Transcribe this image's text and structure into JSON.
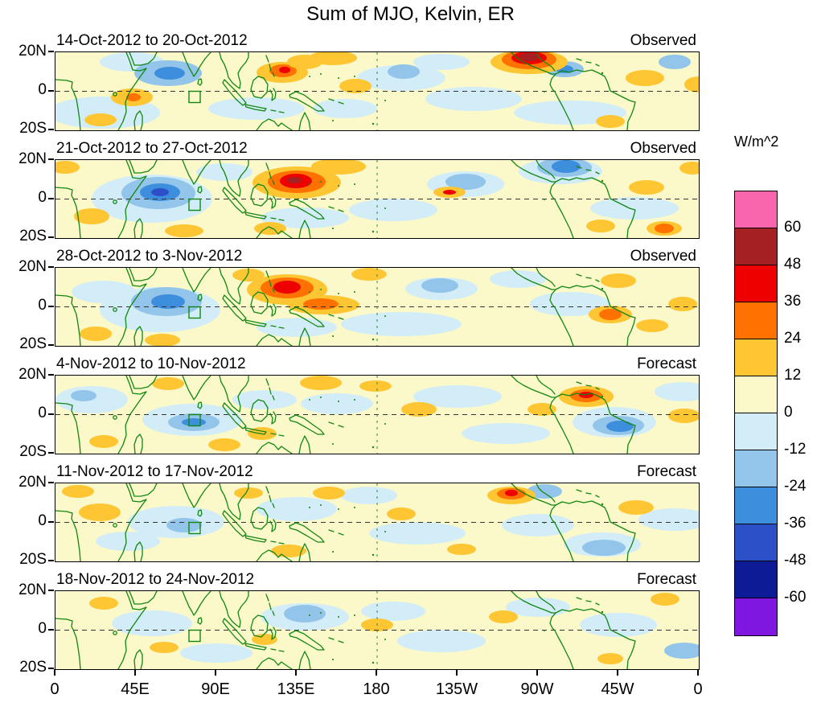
{
  "chart_data": {
    "type": "heatmap",
    "title": "Sum of MJO, Kelvin, ER",
    "subtitle": "",
    "x_axis": {
      "label": "",
      "ticks": [
        "0",
        "45E",
        "90E",
        "135E",
        "180",
        "135W",
        "90W",
        "45W",
        "0"
      ]
    },
    "y_axis": {
      "label": "",
      "ticks": [
        "20N",
        "0",
        "20S"
      ]
    },
    "colorbar": {
      "units": "W/m^2",
      "tick_labels": [
        "60",
        "48",
        "36",
        "24",
        "12",
        "0",
        "-12",
        "-24",
        "-36",
        "-48",
        "-60"
      ],
      "colors_top_to_bottom": [
        "#F966AE",
        "#A52022",
        "#EE0000",
        "#FF7100",
        "#FFC633",
        "#FBF8C9",
        "#D2EDF8",
        "#92C5E9",
        "#3E8EDE",
        "#2C50C8",
        "#0D1C96",
        "#7F17E0"
      ]
    },
    "map": {
      "background": "#FBF8C9",
      "coast_color": "#128712",
      "equator_color": "#333333",
      "dateline_color": "#2E7D32"
    },
    "panels": [
      {
        "period": "14-Oct-2012 to 20-Oct-2012",
        "type": "Observed",
        "features": [
          [
            60,
            75,
            70,
            20,
            "#D2EDF8"
          ],
          [
            250,
            70,
            60,
            14,
            "#D2EDF8"
          ],
          [
            430,
            32,
            55,
            16,
            "#D2EDF8"
          ],
          [
            520,
            58,
            60,
            15,
            "#D2EDF8"
          ],
          [
            640,
            75,
            70,
            15,
            "#D2EDF8"
          ],
          [
            95,
            12,
            40,
            12,
            "#D2EDF8"
          ],
          [
            360,
            70,
            40,
            12,
            "#D2EDF8"
          ],
          [
            480,
            12,
            35,
            10,
            "#D2EDF8"
          ],
          [
            140,
            26,
            42,
            16,
            "#92C5E9"
          ],
          [
            142,
            26,
            19,
            8,
            "#3E8EDE"
          ],
          [
            433,
            24,
            20,
            9,
            "#92C5E9"
          ],
          [
            633,
            21,
            24,
            10,
            "#92C5E9"
          ],
          [
            633,
            21,
            11,
            5,
            "#3E8EDE"
          ],
          [
            770,
            12,
            20,
            9,
            "#92C5E9"
          ],
          [
            95,
            56,
            26,
            11,
            "#FFC633"
          ],
          [
            97,
            56,
            9,
            5,
            "#FF7100"
          ],
          [
            56,
            84,
            20,
            8,
            "#FFC633"
          ],
          [
            282,
            25,
            32,
            13,
            "#FFC633"
          ],
          [
            283,
            23,
            17,
            8,
            "#FF7100"
          ],
          [
            285,
            22,
            7,
            4,
            "#EE0000"
          ],
          [
            310,
            12,
            22,
            9,
            "#FFC633"
          ],
          [
            345,
            7,
            30,
            9,
            "#FFC633"
          ],
          [
            373,
            42,
            20,
            9,
            "#FFC633"
          ],
          [
            589,
            12,
            48,
            15,
            "#FFC633"
          ],
          [
            589,
            9,
            34,
            12,
            "#FF7100"
          ],
          [
            589,
            7,
            22,
            8,
            "#EE0000"
          ],
          [
            589,
            6,
            12,
            5,
            "#A52022"
          ],
          [
            733,
            32,
            24,
            10,
            "#FFC633"
          ],
          [
            690,
            86,
            18,
            8,
            "#FFC633"
          ],
          [
            800,
            40,
            18,
            10,
            "#FFC633"
          ]
        ]
      },
      {
        "period": "21-Oct-2012 to 27-Oct-2012",
        "type": "Observed",
        "features": [
          [
            120,
            48,
            75,
            30,
            "#D2EDF8"
          ],
          [
            310,
            72,
            55,
            13,
            "#D2EDF8"
          ],
          [
            420,
            62,
            55,
            14,
            "#D2EDF8"
          ],
          [
            510,
            30,
            48,
            16,
            "#D2EDF8"
          ],
          [
            628,
            14,
            52,
            16,
            "#D2EDF8"
          ],
          [
            720,
            60,
            55,
            14,
            "#D2EDF8"
          ],
          [
            210,
            15,
            35,
            11,
            "#D2EDF8"
          ],
          [
            128,
            41,
            46,
            20,
            "#92C5E9"
          ],
          [
            130,
            40,
            25,
            11,
            "#3E8EDE"
          ],
          [
            130,
            40,
            11,
            5,
            "#2C50C8"
          ],
          [
            510,
            27,
            25,
            10,
            "#92C5E9"
          ],
          [
            633,
            9,
            34,
            12,
            "#92C5E9"
          ],
          [
            635,
            8,
            18,
            8,
            "#3E8EDE"
          ],
          [
            45,
            70,
            22,
            10,
            "#FFC633"
          ],
          [
            12,
            9,
            18,
            8,
            "#FFC633"
          ],
          [
            300,
            28,
            55,
            20,
            "#FFC633"
          ],
          [
            300,
            27,
            36,
            14,
            "#FF7100"
          ],
          [
            299,
            26,
            20,
            9,
            "#EE0000"
          ],
          [
            297,
            25,
            9,
            4,
            "#A52022"
          ],
          [
            352,
            8,
            34,
            10,
            "#FFC633"
          ],
          [
            267,
            85,
            20,
            8,
            "#FFC633"
          ],
          [
            490,
            40,
            20,
            7,
            "#FFC633"
          ],
          [
            490,
            40,
            8,
            3,
            "#EE0000"
          ],
          [
            735,
            34,
            22,
            9,
            "#FFC633"
          ],
          [
            678,
            82,
            18,
            8,
            "#FFC633"
          ],
          [
            757,
            85,
            22,
            9,
            "#FFC633"
          ],
          [
            757,
            85,
            12,
            6,
            "#FF7100"
          ],
          [
            792,
            10,
            16,
            8,
            "#FFC633"
          ],
          [
            160,
            88,
            24,
            8,
            "#FFC633"
          ]
        ]
      },
      {
        "period": "28-Oct-2012 to 3-Nov-2012",
        "type": "Observed",
        "features": [
          [
            130,
            52,
            75,
            28,
            "#D2EDF8"
          ],
          [
            300,
            74,
            50,
            12,
            "#D2EDF8"
          ],
          [
            430,
            70,
            75,
            15,
            "#D2EDF8"
          ],
          [
            480,
            26,
            45,
            14,
            "#D2EDF8"
          ],
          [
            575,
            14,
            35,
            11,
            "#D2EDF8"
          ],
          [
            640,
            45,
            50,
            15,
            "#D2EDF8"
          ],
          [
            60,
            30,
            40,
            14,
            "#D2EDF8"
          ],
          [
            138,
            42,
            44,
            18,
            "#92C5E9"
          ],
          [
            140,
            42,
            21,
            9,
            "#3E8EDE"
          ],
          [
            478,
            22,
            23,
            9,
            "#92C5E9"
          ],
          [
            50,
            82,
            20,
            9,
            "#FFC633"
          ],
          [
            133,
            90,
            22,
            8,
            "#FFC633"
          ],
          [
            288,
            27,
            50,
            19,
            "#FFC633"
          ],
          [
            288,
            25,
            33,
            13,
            "#FF7100"
          ],
          [
            288,
            24,
            17,
            8,
            "#EE0000"
          ],
          [
            333,
            46,
            45,
            12,
            "#FFC633"
          ],
          [
            330,
            45,
            22,
            7,
            "#FF7100"
          ],
          [
            240,
            9,
            20,
            8,
            "#FFC633"
          ],
          [
            700,
            16,
            22,
            9,
            "#FFC633"
          ],
          [
            690,
            58,
            27,
            11,
            "#FFC633"
          ],
          [
            690,
            58,
            14,
            7,
            "#FF7100"
          ],
          [
            742,
            72,
            20,
            8,
            "#FFC633"
          ],
          [
            390,
            8,
            22,
            8,
            "#FFC633"
          ],
          [
            780,
            45,
            18,
            9,
            "#FFC633"
          ]
        ]
      },
      {
        "period": "4-Nov-2012 to 10-Nov-2012",
        "type": "Forecast",
        "features": [
          [
            45,
            30,
            45,
            17,
            "#D2EDF8"
          ],
          [
            170,
            55,
            62,
            20,
            "#D2EDF8"
          ],
          [
            350,
            35,
            45,
            13,
            "#D2EDF8"
          ],
          [
            500,
            26,
            55,
            14,
            "#D2EDF8"
          ],
          [
            560,
            72,
            55,
            13,
            "#D2EDF8"
          ],
          [
            695,
            58,
            52,
            19,
            "#D2EDF8"
          ],
          [
            780,
            20,
            35,
            12,
            "#D2EDF8"
          ],
          [
            260,
            30,
            40,
            12,
            "#D2EDF8"
          ],
          [
            35,
            25,
            16,
            7,
            "#92C5E9"
          ],
          [
            172,
            58,
            32,
            11,
            "#92C5E9"
          ],
          [
            172,
            58,
            15,
            5,
            "#3E8EDE"
          ],
          [
            700,
            62,
            32,
            12,
            "#92C5E9"
          ],
          [
            702,
            63,
            17,
            7,
            "#3E8EDE"
          ],
          [
            210,
            86,
            20,
            8,
            "#FFC633"
          ],
          [
            257,
            72,
            18,
            8,
            "#FFC633"
          ],
          [
            330,
            9,
            26,
            9,
            "#FFC633"
          ],
          [
            398,
            13,
            20,
            7,
            "#FFC633"
          ],
          [
            452,
            42,
            22,
            9,
            "#FFC633"
          ],
          [
            605,
            42,
            18,
            8,
            "#FFC633"
          ],
          [
            660,
            26,
            34,
            13,
            "#FFC633"
          ],
          [
            660,
            25,
            20,
            8,
            "#FF7100"
          ],
          [
            660,
            24,
            9,
            4,
            "#EE0000"
          ],
          [
            782,
            50,
            20,
            9,
            "#FFC633"
          ],
          [
            60,
            82,
            18,
            8,
            "#FFC633"
          ],
          [
            140,
            10,
            20,
            8,
            "#FFC633"
          ]
        ]
      },
      {
        "period": "11-Nov-2012 to 17-Nov-2012",
        "type": "Forecast",
        "features": [
          [
            150,
            48,
            60,
            20,
            "#D2EDF8"
          ],
          [
            300,
            32,
            50,
            15,
            "#D2EDF8"
          ],
          [
            450,
            62,
            60,
            14,
            "#D2EDF8"
          ],
          [
            600,
            52,
            45,
            14,
            "#D2EDF8"
          ],
          [
            680,
            76,
            48,
            15,
            "#D2EDF8"
          ],
          [
            770,
            45,
            45,
            14,
            "#D2EDF8"
          ],
          [
            90,
            72,
            40,
            12,
            "#D2EDF8"
          ],
          [
            390,
            15,
            35,
            11,
            "#D2EDF8"
          ],
          [
            160,
            52,
            22,
            9,
            "#92C5E9"
          ],
          [
            608,
            10,
            22,
            9,
            "#92C5E9"
          ],
          [
            682,
            80,
            27,
            10,
            "#92C5E9"
          ],
          [
            55,
            36,
            26,
            11,
            "#FFC633"
          ],
          [
            28,
            10,
            20,
            8,
            "#FFC633"
          ],
          [
            290,
            84,
            22,
            8,
            "#FFC633"
          ],
          [
            340,
            12,
            20,
            8,
            "#FFC633"
          ],
          [
            430,
            38,
            18,
            8,
            "#FFC633"
          ],
          [
            567,
            15,
            30,
            11,
            "#FFC633"
          ],
          [
            567,
            13,
            18,
            7,
            "#FF7100"
          ],
          [
            567,
            12,
            8,
            4,
            "#EE0000"
          ],
          [
            722,
            30,
            22,
            9,
            "#FFC633"
          ],
          [
            505,
            82,
            18,
            7,
            "#FFC633"
          ],
          [
            240,
            12,
            18,
            7,
            "#FFC633"
          ]
        ]
      },
      {
        "period": "18-Nov-2012 to 24-Nov-2012",
        "type": "Forecast",
        "features": [
          [
            310,
            32,
            55,
            17,
            "#D2EDF8"
          ],
          [
            120,
            40,
            50,
            16,
            "#D2EDF8"
          ],
          [
            480,
            62,
            55,
            14,
            "#D2EDF8"
          ],
          [
            700,
            42,
            48,
            15,
            "#D2EDF8"
          ],
          [
            200,
            77,
            45,
            12,
            "#D2EDF8"
          ],
          [
            600,
            20,
            40,
            12,
            "#D2EDF8"
          ],
          [
            420,
            25,
            40,
            12,
            "#D2EDF8"
          ],
          [
            310,
            28,
            26,
            11,
            "#92C5E9"
          ],
          [
            782,
            74,
            25,
            10,
            "#92C5E9"
          ],
          [
            135,
            70,
            18,
            7,
            "#FFC633"
          ],
          [
            400,
            42,
            20,
            8,
            "#FFC633"
          ],
          [
            557,
            32,
            18,
            8,
            "#FFC633"
          ],
          [
            690,
            84,
            16,
            7,
            "#FFC633"
          ],
          [
            60,
            15,
            18,
            8,
            "#FFC633"
          ],
          [
            758,
            10,
            18,
            8,
            "#FFC633"
          ],
          [
            260,
            60,
            16,
            7,
            "#FFC633"
          ]
        ]
      }
    ]
  }
}
